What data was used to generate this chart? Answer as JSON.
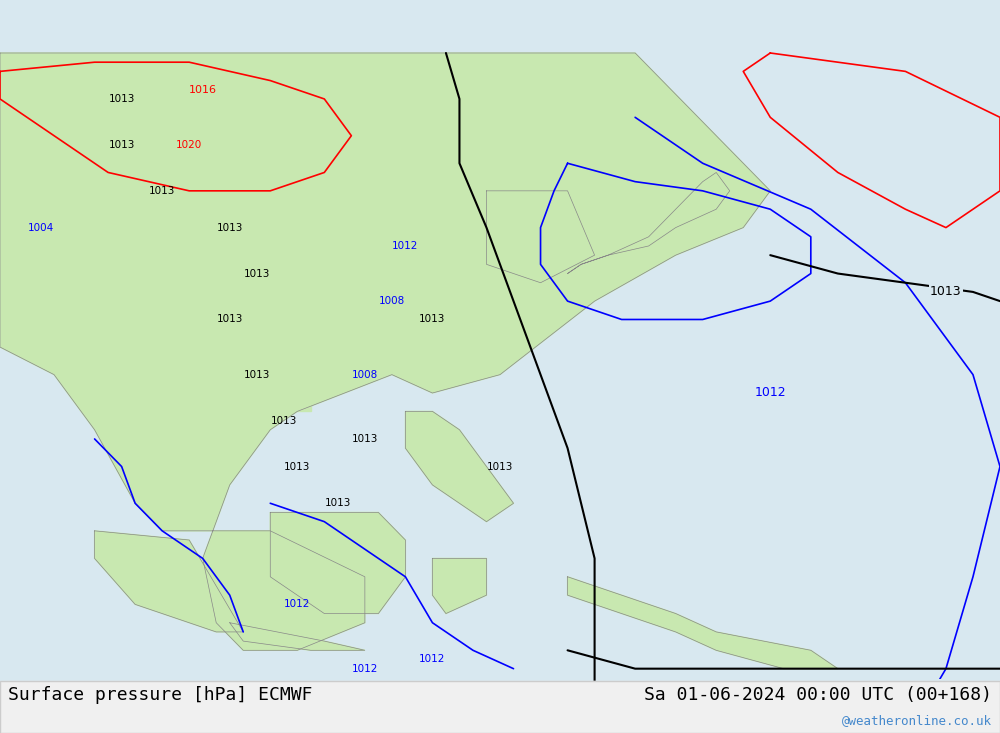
{
  "title_left": "Surface pressure [hPa] ECMWF",
  "title_right": "Sa 01-06-2024 00:00 UTC (00+168)",
  "watermark": "@weatheronline.co.uk",
  "background_sea": "#d8e8f0",
  "background_land": "#c8e8b0",
  "line_color_black": "#000000",
  "line_color_blue": "#0000ff",
  "line_color_red": "#ff0000",
  "title_fontsize": 13,
  "watermark_color": "#4488cc",
  "figsize": [
    10.0,
    7.33
  ],
  "dpi": 100
}
